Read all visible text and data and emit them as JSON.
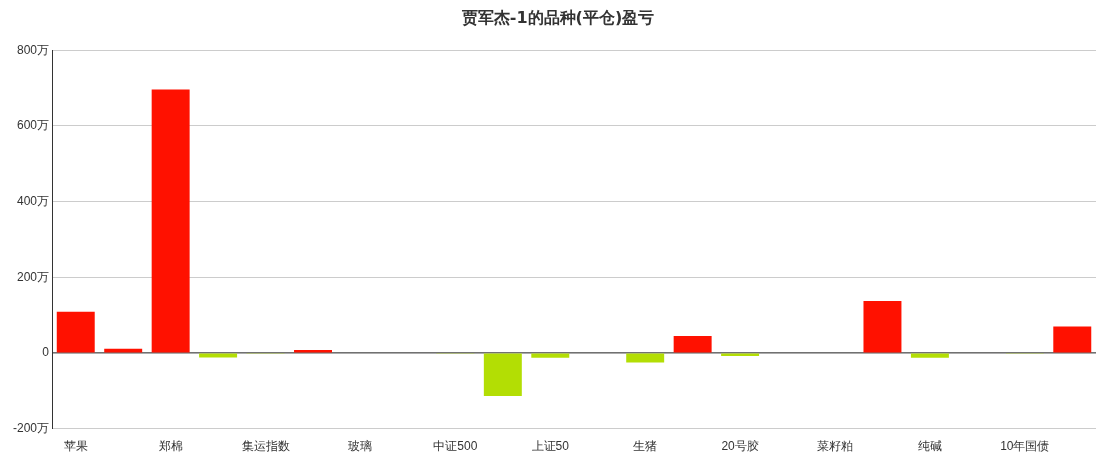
{
  "chart_data": {
    "type": "bar",
    "title": "贾军杰-1的品种(平仓)盈亏",
    "categories": [
      "苹果",
      null,
      "郑棉",
      null,
      "集运指数",
      null,
      "玻璃",
      null,
      "中证500",
      null,
      "上证50",
      null,
      "生猪",
      null,
      "20号胶",
      null,
      "菜籽粕",
      null,
      "纯碱",
      null,
      "10年国债",
      null
    ],
    "values": [
      109,
      11,
      696,
      -12,
      -2,
      8,
      0,
      null,
      -2,
      -114,
      -13,
      null,
      -25,
      45,
      -8,
      null,
      null,
      137,
      -13,
      null,
      -2,
      70
    ],
    "colors": [
      "#ff1100",
      "#ff1100",
      "#ff1100",
      "#b3de04",
      "#b3de04",
      "#ff1100",
      "#ff1100",
      "#ff1100",
      "#b3de04",
      "#b3de04",
      "#b3de04",
      "#ff1100",
      "#b3de04",
      "#ff1100",
      "#b3de04",
      "#ff1100",
      "#b3de04",
      "#ff1100",
      "#b3de04",
      "#b3de04",
      "#b3de04",
      "#ff1100"
    ],
    "ylim": [
      -200,
      800
    ],
    "yticks": [
      {
        "value": -200,
        "label": "-200万"
      },
      {
        "value": 0,
        "label": "0"
      },
      {
        "value": 200,
        "label": "200万"
      },
      {
        "value": 400,
        "label": "400万"
      },
      {
        "value": 600,
        "label": "600万"
      },
      {
        "value": 800,
        "label": "800万"
      }
    ],
    "grid": "y",
    "legend": false
  }
}
